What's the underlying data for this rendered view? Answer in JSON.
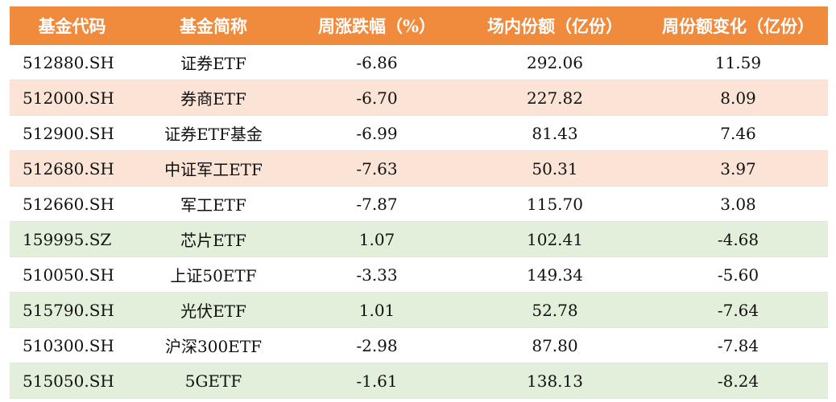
{
  "header": {
    "code": "基金代码",
    "name": "基金简称",
    "weekly_change": "周涨跌幅（%）",
    "shares": "场内份额（亿份）",
    "shares_change": "周份额变化（亿份）"
  },
  "rows": [
    {
      "code": "512880.SH",
      "name": "证券ETF",
      "weekly_change": "-6.86",
      "shares": "292.06",
      "shares_change": "11.59"
    },
    {
      "code": "512000.SH",
      "name": "券商ETF",
      "weekly_change": "-6.70",
      "shares": "227.82",
      "shares_change": "8.09"
    },
    {
      "code": "512900.SH",
      "name": "证券ETF基金",
      "weekly_change": "-6.99",
      "shares": "81.43",
      "shares_change": "7.46"
    },
    {
      "code": "512680.SH",
      "name": "中证军工ETF",
      "weekly_change": "-7.63",
      "shares": "50.31",
      "shares_change": "3.97"
    },
    {
      "code": "512660.SH",
      "name": "军工ETF",
      "weekly_change": "-7.87",
      "shares": "115.70",
      "shares_change": "3.08"
    },
    {
      "code": "159995.SZ",
      "name": "芯片ETF",
      "weekly_change": "1.07",
      "shares": "102.41",
      "shares_change": "-4.68"
    },
    {
      "code": "510050.SH",
      "name": "上证50ETF",
      "weekly_change": "-3.33",
      "shares": "149.34",
      "shares_change": "-5.60"
    },
    {
      "code": "515790.SH",
      "name": "光伏ETF",
      "weekly_change": "1.01",
      "shares": "52.78",
      "shares_change": "-7.64"
    },
    {
      "code": "510300.SH",
      "name": "沪深300ETF",
      "weekly_change": "-2.98",
      "shares": "87.80",
      "shares_change": "-7.84"
    },
    {
      "code": "515050.SH",
      "name": "5GETF",
      "weekly_change": "-1.61",
      "shares": "138.13",
      "shares_change": "-8.24"
    }
  ],
  "colors": {
    "header_bg": "#f08a3c",
    "header_text": "#ffffff",
    "peach_row": "#fbe3d6",
    "green_row": "#e2efda"
  }
}
